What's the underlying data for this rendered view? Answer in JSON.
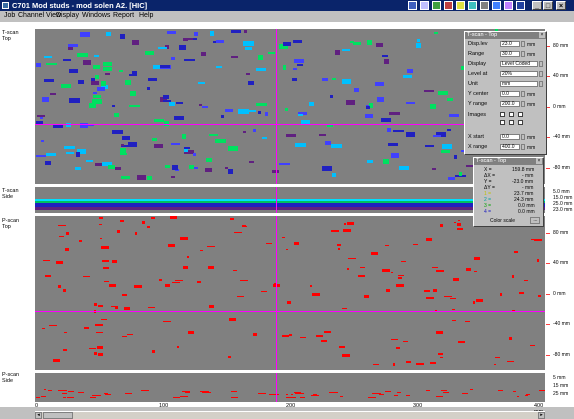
{
  "titlebar": {
    "title": "C701 Mod studs - mod solen A2. [HIC]",
    "minimize": "_",
    "maximize": "□",
    "close": "×"
  },
  "menu": [
    "Job",
    "Channel View",
    "Display",
    "Windows",
    "Report",
    "Help"
  ],
  "panes": {
    "tscan_top": "T-scan\nTop",
    "tscan_side": "T-scan\nSide",
    "pscan_top": "P-scan\nTop",
    "pscan_side": "P-scan\nSide"
  },
  "ruler_top": [
    "80 mm",
    "40 mm",
    "0 mm",
    "-40 mm",
    "-80 mm"
  ],
  "ruler_side": [
    "5.0 mm",
    "15.0 mm",
    "25.0 mm",
    "23.0 mm"
  ],
  "ruler_ptop": [
    "80 mm",
    "40 mm",
    "0 mm",
    "-40 mm",
    "-80 mm"
  ],
  "ruler_pside": [
    "5 mm",
    "15 mm",
    "25 mm"
  ],
  "xaxis": [
    "0",
    "100",
    "200",
    "300",
    "400 mm"
  ],
  "display_panel": {
    "title": "T-scan - Top",
    "rows": [
      {
        "label": "Disp.lev",
        "value": "23.0",
        "unit": "mm"
      },
      {
        "label": "Range",
        "value": "30.0",
        "unit": "mm"
      },
      {
        "label": "Display",
        "value": "Level Coded"
      },
      {
        "label": "Level at",
        "value": "20%"
      },
      {
        "label": "Unit",
        "value": "mm"
      },
      {
        "label": "Y center",
        "value": "0.0",
        "unit": "mm"
      },
      {
        "label": "Y range",
        "value": "200.0",
        "unit": "mm"
      },
      {
        "label": "Images",
        "value": ""
      },
      {
        "label": "X start",
        "value": "0.0",
        "unit": "mm"
      },
      {
        "label": "X range",
        "value": "400.0",
        "unit": "mm"
      }
    ]
  },
  "cursor_panel": {
    "title": "T-scan - Top",
    "rows": [
      {
        "label": "X =",
        "value": "159.8 mm"
      },
      {
        "label": "ΔX =",
        "value": "- mm"
      },
      {
        "label": "Y =",
        "value": "-23.0 mm"
      },
      {
        "label": "ΔY =",
        "value": "- mm"
      },
      {
        "label": "1 =",
        "value": "23.7 mm"
      },
      {
        "label": "2 =",
        "value": "24.3 mm"
      },
      {
        "label": "3 =",
        "value": "0.0 mm"
      },
      {
        "label": "4 =",
        "value": "0.0 mm"
      }
    ],
    "color_scale": "Color scale",
    "color_scale_btn": "..."
  },
  "colors": {
    "titlebar": "#0a246a",
    "pane_bg": "#808080",
    "cursor": "#ff00ff",
    "pscan_marks": "#ff0000",
    "tscan_palette": [
      "#2020c0",
      "#00c0ff",
      "#00e060",
      "#602080",
      "#4040ff"
    ]
  }
}
